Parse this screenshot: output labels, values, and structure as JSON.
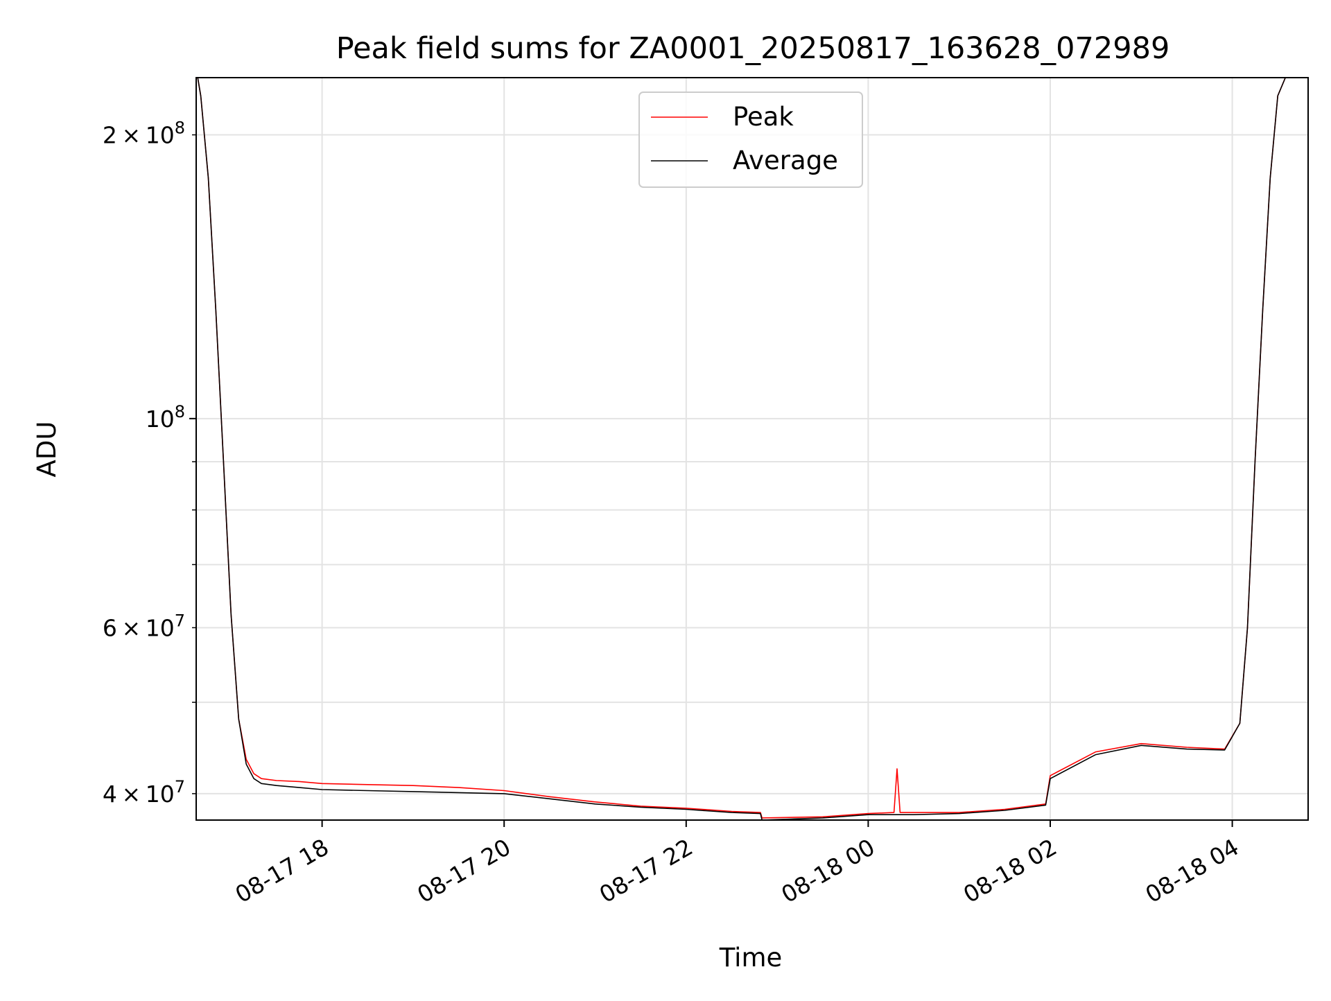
{
  "chart_data": {
    "type": "line",
    "title": "Peak field sums for ZA0001_20250817_163628_072989",
    "xlabel": "Time",
    "ylabel": "ADU",
    "yscale": "log",
    "xlim": [
      "2025-08-17T16:37",
      "2025-08-18T04:50"
    ],
    "ylim": [
      37500000,
      230000000
    ],
    "grid": true,
    "legend_position": "upper center",
    "x_ticks": [
      {
        "label": "08-17 18",
        "value": "2025-08-17T18:00"
      },
      {
        "label": "08-17 20",
        "value": "2025-08-17T20:00"
      },
      {
        "label": "08-17 22",
        "value": "2025-08-17T22:00"
      },
      {
        "label": "08-18 00",
        "value": "2025-08-18T00:00"
      },
      {
        "label": "08-18 02",
        "value": "2025-08-18T02:00"
      },
      {
        "label": "08-18 04",
        "value": "2025-08-18T04:00"
      }
    ],
    "y_ticks": [
      {
        "label_mantissa": "4",
        "label_base": "10",
        "label_exp": "7",
        "value": 40000000,
        "major": false
      },
      {
        "label_mantissa": "6",
        "label_base": "10",
        "label_exp": "7",
        "value": 60000000,
        "major": false
      },
      {
        "label_mantissa": "",
        "label_base": "10",
        "label_exp": "8",
        "value": 100000000,
        "major": true
      },
      {
        "label_mantissa": "2",
        "label_base": "10",
        "label_exp": "8",
        "value": 200000000,
        "major": false
      }
    ],
    "y_minor_unlabeled": [
      50000000,
      70000000,
      80000000,
      90000000
    ],
    "series": [
      {
        "name": "Peak",
        "color": "#ff0000",
        "x": [
          "2025-08-17T16:38",
          "2025-08-17T16:40",
          "2025-08-17T16:45",
          "2025-08-17T16:50",
          "2025-08-17T16:55",
          "2025-08-17T17:00",
          "2025-08-17T17:05",
          "2025-08-17T17:10",
          "2025-08-17T17:15",
          "2025-08-17T17:20",
          "2025-08-17T17:30",
          "2025-08-17T17:45",
          "2025-08-17T18:00",
          "2025-08-17T18:30",
          "2025-08-17T19:00",
          "2025-08-17T19:30",
          "2025-08-17T20:00",
          "2025-08-17T20:30",
          "2025-08-17T21:00",
          "2025-08-17T21:30",
          "2025-08-17T22:00",
          "2025-08-17T22:30",
          "2025-08-17T22:49",
          "2025-08-17T22:50",
          "2025-08-17T23:30",
          "2025-08-18T00:00",
          "2025-08-18T00:17",
          "2025-08-18T00:19",
          "2025-08-18T00:21",
          "2025-08-18T01:00",
          "2025-08-18T01:30",
          "2025-08-18T01:57",
          "2025-08-18T02:00",
          "2025-08-18T02:30",
          "2025-08-18T03:00",
          "2025-08-18T03:30",
          "2025-08-18T03:55",
          "2025-08-18T04:05",
          "2025-08-18T04:10",
          "2025-08-18T04:15",
          "2025-08-18T04:20",
          "2025-08-18T04:25",
          "2025-08-18T04:30",
          "2025-08-18T04:35"
        ],
        "y": [
          230000000,
          220000000,
          180000000,
          130000000,
          90000000,
          62000000,
          48000000,
          43500000,
          42000000,
          41500000,
          41300000,
          41200000,
          41000000,
          40900000,
          40800000,
          40600000,
          40300000,
          39700000,
          39200000,
          38800000,
          38600000,
          38300000,
          38200000,
          37700000,
          37800000,
          38100000,
          38200000,
          42500000,
          38200000,
          38200000,
          38500000,
          39000000,
          41800000,
          44300000,
          45200000,
          44800000,
          44600000,
          47500000,
          60000000,
          90000000,
          130000000,
          180000000,
          220000000,
          230000000
        ]
      },
      {
        "name": "Average",
        "color": "#000000",
        "x": [
          "2025-08-17T16:38",
          "2025-08-17T16:40",
          "2025-08-17T16:45",
          "2025-08-17T16:50",
          "2025-08-17T16:55",
          "2025-08-17T17:00",
          "2025-08-17T17:05",
          "2025-08-17T17:10",
          "2025-08-17T17:15",
          "2025-08-17T17:20",
          "2025-08-17T17:30",
          "2025-08-17T17:45",
          "2025-08-17T18:00",
          "2025-08-17T18:30",
          "2025-08-17T19:00",
          "2025-08-17T19:30",
          "2025-08-17T20:00",
          "2025-08-17T20:30",
          "2025-08-17T21:00",
          "2025-08-17T21:30",
          "2025-08-17T22:00",
          "2025-08-17T22:30",
          "2025-08-17T22:49",
          "2025-08-17T22:50",
          "2025-08-17T23:30",
          "2025-08-18T00:00",
          "2025-08-18T00:30",
          "2025-08-18T01:00",
          "2025-08-18T01:30",
          "2025-08-18T01:57",
          "2025-08-18T02:00",
          "2025-08-18T02:30",
          "2025-08-18T03:00",
          "2025-08-18T03:30",
          "2025-08-18T03:55",
          "2025-08-18T04:05",
          "2025-08-18T04:10",
          "2025-08-18T04:15",
          "2025-08-18T04:20",
          "2025-08-18T04:25",
          "2025-08-18T04:30",
          "2025-08-18T04:35"
        ],
        "y": [
          230000000,
          220000000,
          180000000,
          130000000,
          90000000,
          62000000,
          48000000,
          43000000,
          41500000,
          41000000,
          40800000,
          40600000,
          40400000,
          40300000,
          40200000,
          40100000,
          40000000,
          39500000,
          39000000,
          38700000,
          38500000,
          38200000,
          38100000,
          37500000,
          37700000,
          38000000,
          38000000,
          38100000,
          38400000,
          38900000,
          41500000,
          44000000,
          45000000,
          44600000,
          44500000,
          47500000,
          60000000,
          90000000,
          130000000,
          180000000,
          220000000,
          230000000
        ]
      }
    ]
  }
}
